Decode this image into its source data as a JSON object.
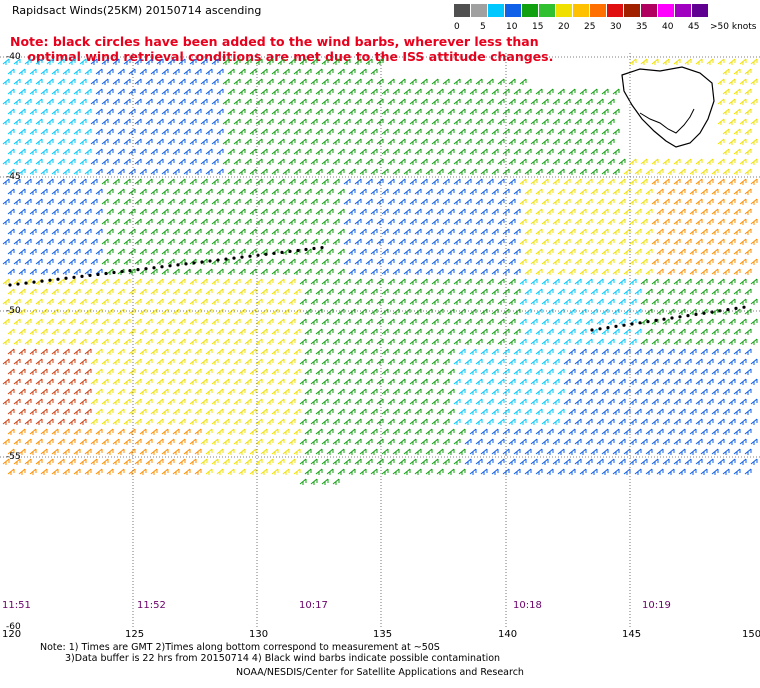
{
  "title": "Rapidsact Winds(25KM) 20150714 ascending",
  "note_line1": "Note: black circles have been added to the wind barbs, wherever less than",
  "note_line2": "    optimal wind retrieval conditions are met due to the ISS attitude changes.",
  "colors": {
    "note": "#e8001c",
    "time_labels": "#6a006a",
    "grid": "#555555"
  },
  "color_scale": {
    "labels": [
      "0",
      "5",
      "10",
      "15",
      "20",
      "25",
      "30",
      "35",
      "40",
      "45",
      ">50 knots"
    ],
    "colors": [
      "#505050",
      "#a0a0a0",
      "#00c8ff",
      "#1060e8",
      "#10a010",
      "#30c030",
      "#f0e000",
      "#ffc000",
      "#ff7000",
      "#e01010",
      "#a02000",
      "#b00060",
      "#ff00ff",
      "#a000c0",
      "#600090"
    ]
  },
  "latitude_labels": [
    "-40",
    "-45",
    "-50",
    "-55",
    "-60"
  ],
  "longitude_labels": [
    "120",
    "125",
    "130",
    "135",
    "140",
    "145",
    "150"
  ],
  "time_labels": [
    "11:51",
    "11:52",
    "10:17",
    "10:18",
    "10:19"
  ],
  "footnote1": "Note: 1) Times are GMT 2)Times along bottom correspond to measurement at ~50S",
  "footnote2": "3)Data buffer is 22 hrs from 20150714 4) Black wind barbs indicate possible contamination",
  "credit": "NOAA/NESDIS/Center for Satellite Applications and Research"
}
